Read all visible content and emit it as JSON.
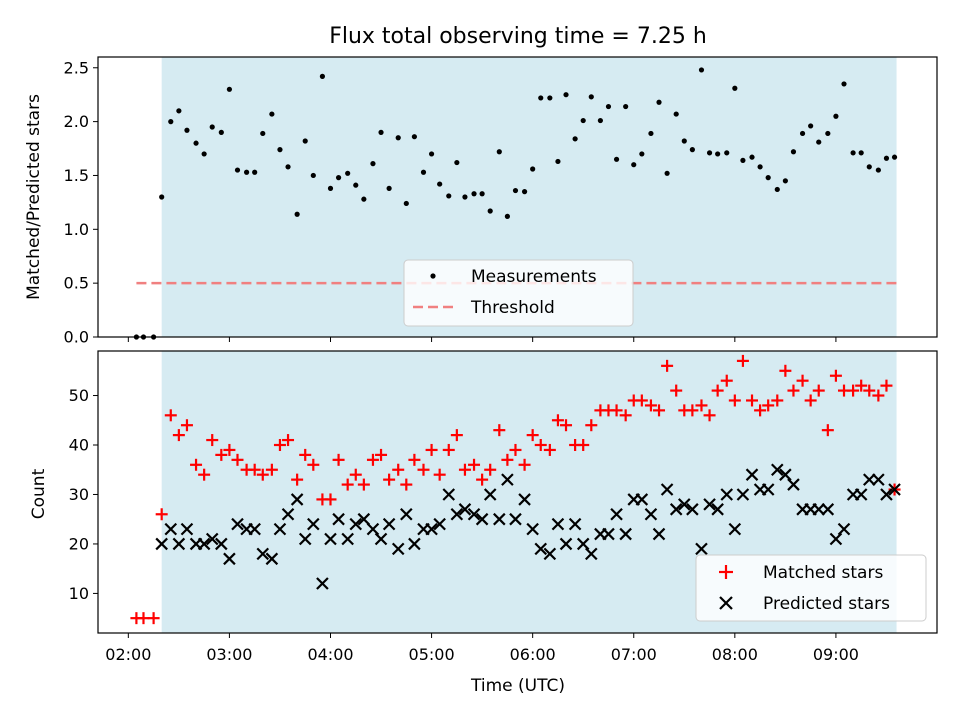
{
  "figure": {
    "title": "Flux total observing time = 7.25 h",
    "xlabel": "Time (UTC)"
  },
  "colors": {
    "shade": "#add8e6",
    "measurements": "#000000",
    "threshold": "#f08080",
    "matched": "#ff0000",
    "predicted": "#000000"
  },
  "chart_data": [
    {
      "type": "scatter",
      "panel": "top",
      "ylabel": "Matched/Predicted stars",
      "xlim_hours": [
        1.7,
        10.0
      ],
      "ylim": [
        0,
        2.6
      ],
      "yticks": [
        0.0,
        0.5,
        1.0,
        1.5,
        2.0,
        2.5
      ],
      "ytick_labels": [
        "0.0",
        "0.5",
        "1.0",
        "1.5",
        "2.0",
        "2.5"
      ],
      "observing_window_hours": [
        2.33,
        9.6
      ],
      "threshold": {
        "name": "Threshold",
        "y": 0.5,
        "x_range_hours": [
          2.08,
          9.6
        ]
      },
      "legend": {
        "placement": "lower-center",
        "entries": [
          "Measurements",
          "Threshold"
        ]
      },
      "series": [
        {
          "name": "Measurements",
          "x_hours": [
            2.08,
            2.15,
            2.25,
            2.33,
            2.42,
            2.5,
            2.58,
            2.67,
            2.75,
            2.83,
            2.92,
            3.0,
            3.08,
            3.17,
            3.25,
            3.33,
            3.42,
            3.5,
            3.58,
            3.67,
            3.75,
            3.83,
            3.92,
            4.0,
            4.08,
            4.17,
            4.25,
            4.33,
            4.42,
            4.5,
            4.58,
            4.67,
            4.75,
            4.83,
            4.92,
            5.0,
            5.08,
            5.17,
            5.25,
            5.33,
            5.42,
            5.5,
            5.58,
            5.67,
            5.75,
            5.83,
            5.92,
            6.0,
            6.08,
            6.17,
            6.25,
            6.33,
            6.42,
            6.5,
            6.58,
            6.67,
            6.75,
            6.83,
            6.92,
            7.0,
            7.08,
            7.17,
            7.25,
            7.33,
            7.42,
            7.5,
            7.58,
            7.67,
            7.75,
            7.83,
            7.92,
            8.0,
            8.08,
            8.17,
            8.25,
            8.33,
            8.42,
            8.5,
            8.58,
            8.67,
            8.75,
            8.83,
            8.92,
            9.0,
            9.08,
            9.17,
            9.25,
            9.33,
            9.42,
            9.5,
            9.58
          ],
          "y": [
            0.0,
            0.0,
            0.0,
            1.3,
            2.0,
            2.1,
            1.92,
            1.8,
            1.7,
            1.95,
            1.9,
            2.3,
            1.55,
            1.53,
            1.53,
            1.89,
            2.07,
            1.74,
            1.58,
            1.14,
            1.82,
            1.5,
            2.42,
            1.38,
            1.48,
            1.52,
            1.41,
            1.28,
            1.61,
            1.9,
            1.38,
            1.85,
            1.24,
            1.86,
            1.53,
            1.7,
            1.42,
            1.31,
            1.62,
            1.3,
            1.33,
            1.33,
            1.17,
            1.72,
            1.12,
            1.36,
            1.35,
            1.56,
            2.22,
            2.22,
            1.63,
            2.25,
            1.84,
            2.01,
            2.23,
            2.01,
            2.14,
            1.65,
            2.14,
            1.6,
            1.7,
            1.89,
            2.18,
            1.52,
            2.07,
            1.82,
            1.74,
            2.48,
            1.71,
            1.7,
            1.71,
            2.31,
            1.64,
            1.67,
            1.58,
            1.48,
            1.37,
            1.45,
            1.72,
            1.89,
            1.96,
            1.81,
            1.89,
            2.05,
            2.35,
            1.71,
            1.71,
            1.58,
            1.55,
            1.66,
            1.67
          ]
        }
      ]
    },
    {
      "type": "scatter",
      "panel": "bottom",
      "ylabel": "Count",
      "xlim_hours": [
        1.7,
        10.0
      ],
      "ylim": [
        2,
        59
      ],
      "yticks": [
        10,
        20,
        30,
        40,
        50
      ],
      "ytick_labels": [
        "10",
        "20",
        "30",
        "40",
        "50"
      ],
      "xticks_hours": [
        2,
        3,
        4,
        5,
        6,
        7,
        8,
        9
      ],
      "xtick_labels": [
        "02:00",
        "03:00",
        "04:00",
        "05:00",
        "06:00",
        "07:00",
        "08:00",
        "09:00"
      ],
      "observing_window_hours": [
        2.33,
        9.6
      ],
      "legend": {
        "placement": "lower-right",
        "entries": [
          "Matched stars",
          "Predicted stars"
        ]
      },
      "series": [
        {
          "name": "Matched stars",
          "x_hours": [
            2.08,
            2.15,
            2.25,
            2.33,
            2.42,
            2.5,
            2.58,
            2.67,
            2.75,
            2.83,
            2.92,
            3.0,
            3.08,
            3.17,
            3.25,
            3.33,
            3.42,
            3.5,
            3.58,
            3.67,
            3.75,
            3.83,
            3.92,
            4.0,
            4.08,
            4.17,
            4.25,
            4.33,
            4.42,
            4.5,
            4.58,
            4.67,
            4.75,
            4.83,
            4.92,
            5.0,
            5.08,
            5.17,
            5.25,
            5.33,
            5.42,
            5.5,
            5.58,
            5.67,
            5.75,
            5.83,
            5.92,
            6.0,
            6.08,
            6.17,
            6.25,
            6.33,
            6.42,
            6.5,
            6.58,
            6.67,
            6.75,
            6.83,
            6.92,
            7.0,
            7.08,
            7.17,
            7.25,
            7.33,
            7.42,
            7.5,
            7.58,
            7.67,
            7.75,
            7.83,
            7.92,
            8.0,
            8.08,
            8.17,
            8.25,
            8.33,
            8.42,
            8.5,
            8.58,
            8.67,
            8.75,
            8.83,
            8.92,
            9.0,
            9.08,
            9.17,
            9.25,
            9.33,
            9.42,
            9.5,
            9.58
          ],
          "y": [
            5,
            5,
            5,
            26,
            46,
            42,
            44,
            36,
            34,
            41,
            38,
            39,
            37,
            35,
            35,
            34,
            35,
            40,
            41,
            33,
            38,
            36,
            29,
            29,
            37,
            32,
            34,
            32,
            37,
            38,
            33,
            35,
            32,
            37,
            35,
            39,
            34,
            39,
            42,
            35,
            36,
            33,
            35,
            43,
            37,
            39,
            36,
            42,
            40,
            39,
            45,
            44,
            40,
            40,
            44,
            47,
            47,
            47,
            46,
            49,
            49,
            48,
            47,
            56,
            51,
            47,
            47,
            48,
            46,
            51,
            53,
            49,
            57,
            49,
            47,
            48,
            49,
            55,
            51,
            53,
            49,
            51,
            43,
            54,
            51,
            51,
            52,
            51,
            50,
            52,
            31
          ],
          "marker": "+"
        },
        {
          "name": "Predicted stars",
          "x_hours": [
            2.33,
            2.42,
            2.5,
            2.58,
            2.67,
            2.75,
            2.83,
            2.92,
            3.0,
            3.08,
            3.17,
            3.25,
            3.33,
            3.42,
            3.5,
            3.58,
            3.67,
            3.75,
            3.83,
            3.92,
            4.0,
            4.08,
            4.17,
            4.25,
            4.33,
            4.42,
            4.5,
            4.58,
            4.67,
            4.75,
            4.83,
            4.92,
            5.0,
            5.08,
            5.17,
            5.25,
            5.33,
            5.42,
            5.5,
            5.58,
            5.67,
            5.75,
            5.83,
            5.92,
            6.0,
            6.08,
            6.17,
            6.25,
            6.33,
            6.42,
            6.5,
            6.58,
            6.67,
            6.75,
            6.83,
            6.92,
            7.0,
            7.08,
            7.17,
            7.25,
            7.33,
            7.42,
            7.5,
            7.58,
            7.67,
            7.75,
            7.83,
            7.92,
            8.0,
            8.08,
            8.17,
            8.25,
            8.33,
            8.42,
            8.5,
            8.58,
            8.67,
            8.75,
            8.83,
            8.92,
            9.0,
            9.08,
            9.17,
            9.25,
            9.33,
            9.42,
            9.5,
            9.58
          ],
          "y": [
            20,
            23,
            20,
            23,
            20,
            20,
            21,
            20,
            17,
            24,
            23,
            23,
            18,
            17,
            23,
            26,
            29,
            21,
            24,
            12,
            21,
            25,
            21,
            24,
            25,
            23,
            21,
            24,
            19,
            26,
            20,
            23,
            23,
            24,
            30,
            26,
            27,
            26,
            25,
            30,
            25,
            33,
            25,
            29,
            23,
            19,
            18,
            24,
            20,
            24,
            20,
            18,
            22,
            22,
            26,
            22,
            29,
            29,
            26,
            22,
            31,
            27,
            28,
            27,
            19,
            28,
            27,
            30,
            23,
            30,
            34,
            31,
            31,
            35,
            34,
            32,
            27,
            27,
            27,
            27,
            21,
            23,
            30,
            30,
            33,
            33,
            30,
            31
          ],
          "marker": "x"
        }
      ]
    }
  ]
}
